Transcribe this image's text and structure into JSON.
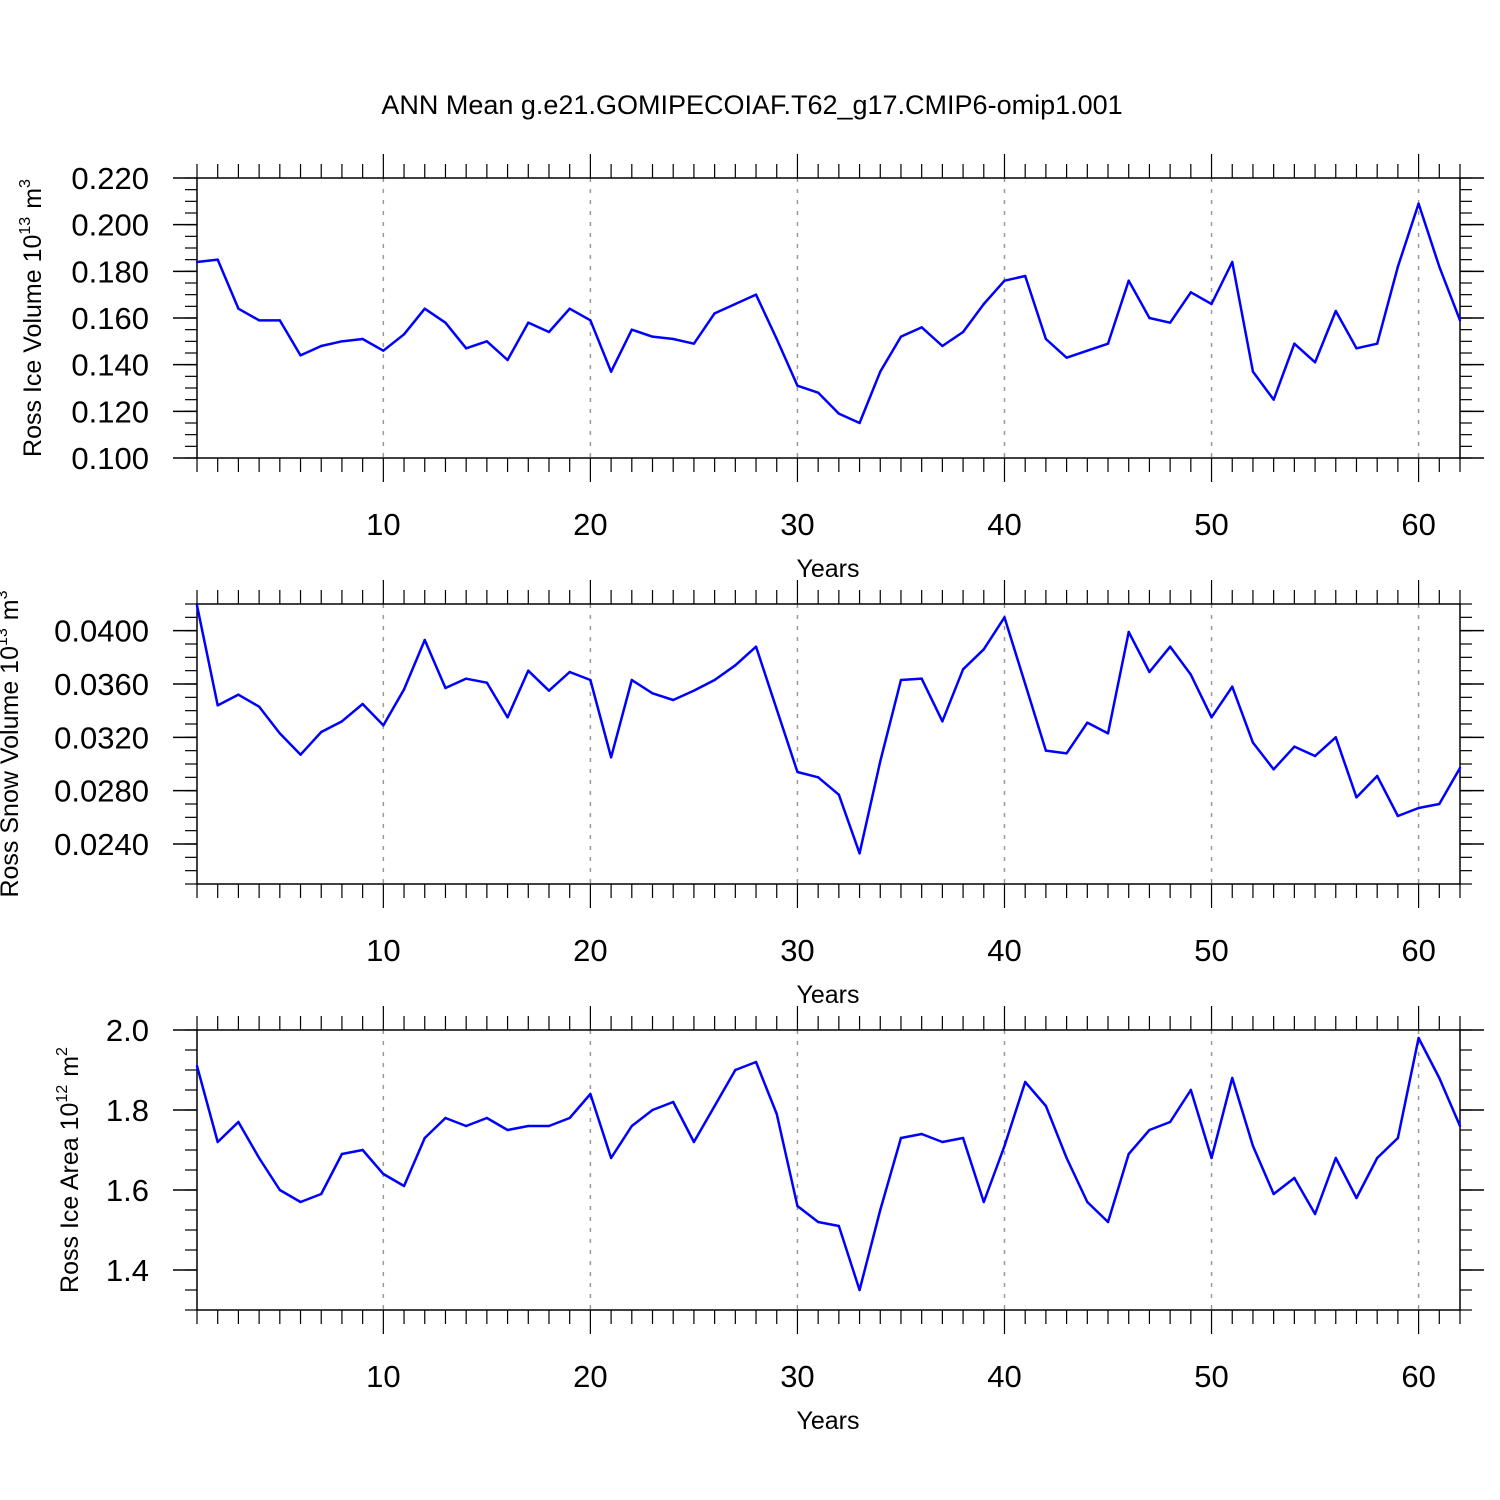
{
  "chart_data": [
    {
      "type": "line",
      "title": "ANN Mean g.e21.GOMIPECOIAF.T62_g17.CMIP6-omip1.001",
      "ylabel_main": "Ross Ice Volume 10",
      "ylabel_exp": "13",
      "ylabel_unit": "m",
      "ylabel_unit_exp": "3",
      "xlabel": "Years",
      "xlim": [
        1,
        62
      ],
      "ylim": [
        0.1,
        0.22
      ],
      "yticks": [
        "0.100",
        "0.120",
        "0.140",
        "0.160",
        "0.180",
        "0.200",
        "0.220"
      ],
      "xticks": [
        "10",
        "20",
        "30",
        "40",
        "50",
        "60"
      ],
      "color": "#0000ff",
      "x": [
        1,
        2,
        3,
        4,
        5,
        6,
        7,
        8,
        9,
        10,
        11,
        12,
        13,
        14,
        15,
        16,
        17,
        18,
        19,
        20,
        21,
        22,
        23,
        24,
        25,
        26,
        27,
        28,
        29,
        30,
        31,
        32,
        33,
        34,
        35,
        36,
        37,
        38,
        39,
        40,
        41,
        42,
        43,
        44,
        45,
        46,
        47,
        48,
        49,
        50,
        51,
        52,
        53,
        54,
        55,
        56,
        57,
        58,
        59,
        60,
        61,
        62
      ],
      "values": [
        0.184,
        0.185,
        0.164,
        0.159,
        0.159,
        0.144,
        0.148,
        0.15,
        0.151,
        0.146,
        0.153,
        0.164,
        0.158,
        0.147,
        0.15,
        0.142,
        0.158,
        0.154,
        0.164,
        0.159,
        0.137,
        0.155,
        0.152,
        0.151,
        0.149,
        0.162,
        0.166,
        0.17,
        0.151,
        0.131,
        0.128,
        0.119,
        0.115,
        0.137,
        0.152,
        0.156,
        0.148,
        0.154,
        0.166,
        0.176,
        0.178,
        0.151,
        0.143,
        0.146,
        0.149,
        0.176,
        0.16,
        0.158,
        0.171,
        0.166,
        0.184,
        0.137,
        0.125,
        0.149,
        0.141,
        0.163,
        0.147,
        0.149,
        0.182,
        0.209,
        0.182,
        0.159
      ]
    },
    {
      "type": "line",
      "ylabel_main": "Ross Snow Volume 10",
      "ylabel_exp": "13",
      "ylabel_unit": "m",
      "ylabel_unit_exp": "3",
      "xlabel": "Years",
      "xlim": [
        1,
        62
      ],
      "ylim": [
        0.021,
        0.042
      ],
      "yticks": [
        "0.0240",
        "0.0280",
        "0.0320",
        "0.0360",
        "0.0400"
      ],
      "xticks": [
        "10",
        "20",
        "30",
        "40",
        "50",
        "60"
      ],
      "color": "#0000ff",
      "x": [
        1,
        2,
        3,
        4,
        5,
        6,
        7,
        8,
        9,
        10,
        11,
        12,
        13,
        14,
        15,
        16,
        17,
        18,
        19,
        20,
        21,
        22,
        23,
        24,
        25,
        26,
        27,
        28,
        29,
        30,
        31,
        32,
        33,
        34,
        35,
        36,
        37,
        38,
        39,
        40,
        41,
        42,
        43,
        44,
        45,
        46,
        47,
        48,
        49,
        50,
        51,
        52,
        53,
        54,
        55,
        56,
        57,
        58,
        59,
        60,
        61,
        62
      ],
      "values": [
        0.0419,
        0.0344,
        0.0352,
        0.0343,
        0.0323,
        0.0307,
        0.0324,
        0.0332,
        0.0345,
        0.0329,
        0.0356,
        0.0393,
        0.0357,
        0.0364,
        0.0361,
        0.0335,
        0.037,
        0.0355,
        0.0369,
        0.0363,
        0.0305,
        0.0363,
        0.0353,
        0.0348,
        0.0355,
        0.0363,
        0.0374,
        0.0388,
        0.0341,
        0.0294,
        0.029,
        0.0277,
        0.0233,
        0.0302,
        0.0363,
        0.0364,
        0.0332,
        0.0371,
        0.0386,
        0.041,
        0.036,
        0.031,
        0.0308,
        0.0331,
        0.0323,
        0.0399,
        0.0369,
        0.0388,
        0.0367,
        0.0335,
        0.0358,
        0.0316,
        0.0296,
        0.0313,
        0.0306,
        0.032,
        0.0275,
        0.0291,
        0.0261,
        0.0267,
        0.027,
        0.0297
      ]
    },
    {
      "type": "line",
      "ylabel_main": "Ross Ice Area 10",
      "ylabel_exp": "12",
      "ylabel_unit": "m",
      "ylabel_unit_exp": "2",
      "xlabel": "Years",
      "xlim": [
        1,
        62
      ],
      "ylim": [
        1.3,
        2.0
      ],
      "yticks": [
        "1.4",
        "1.6",
        "1.8",
        "2.0"
      ],
      "xticks": [
        "10",
        "20",
        "30",
        "40",
        "50",
        "60"
      ],
      "color": "#0000ff",
      "x": [
        1,
        2,
        3,
        4,
        5,
        6,
        7,
        8,
        9,
        10,
        11,
        12,
        13,
        14,
        15,
        16,
        17,
        18,
        19,
        20,
        21,
        22,
        23,
        24,
        25,
        26,
        27,
        28,
        29,
        30,
        31,
        32,
        33,
        34,
        35,
        36,
        37,
        38,
        39,
        40,
        41,
        42,
        43,
        44,
        45,
        46,
        47,
        48,
        49,
        50,
        51,
        52,
        53,
        54,
        55,
        56,
        57,
        58,
        59,
        60,
        61,
        62
      ],
      "values": [
        1.91,
        1.72,
        1.77,
        1.68,
        1.6,
        1.57,
        1.59,
        1.69,
        1.7,
        1.64,
        1.61,
        1.73,
        1.78,
        1.76,
        1.78,
        1.75,
        1.76,
        1.76,
        1.78,
        1.84,
        1.68,
        1.76,
        1.8,
        1.82,
        1.72,
        1.81,
        1.9,
        1.92,
        1.79,
        1.56,
        1.52,
        1.51,
        1.35,
        1.55,
        1.73,
        1.74,
        1.72,
        1.73,
        1.57,
        1.71,
        1.87,
        1.81,
        1.68,
        1.57,
        1.52,
        1.69,
        1.75,
        1.77,
        1.85,
        1.68,
        1.88,
        1.71,
        1.59,
        1.63,
        1.54,
        1.68,
        1.58,
        1.68,
        1.73,
        1.98,
        1.88,
        1.76
      ]
    }
  ]
}
